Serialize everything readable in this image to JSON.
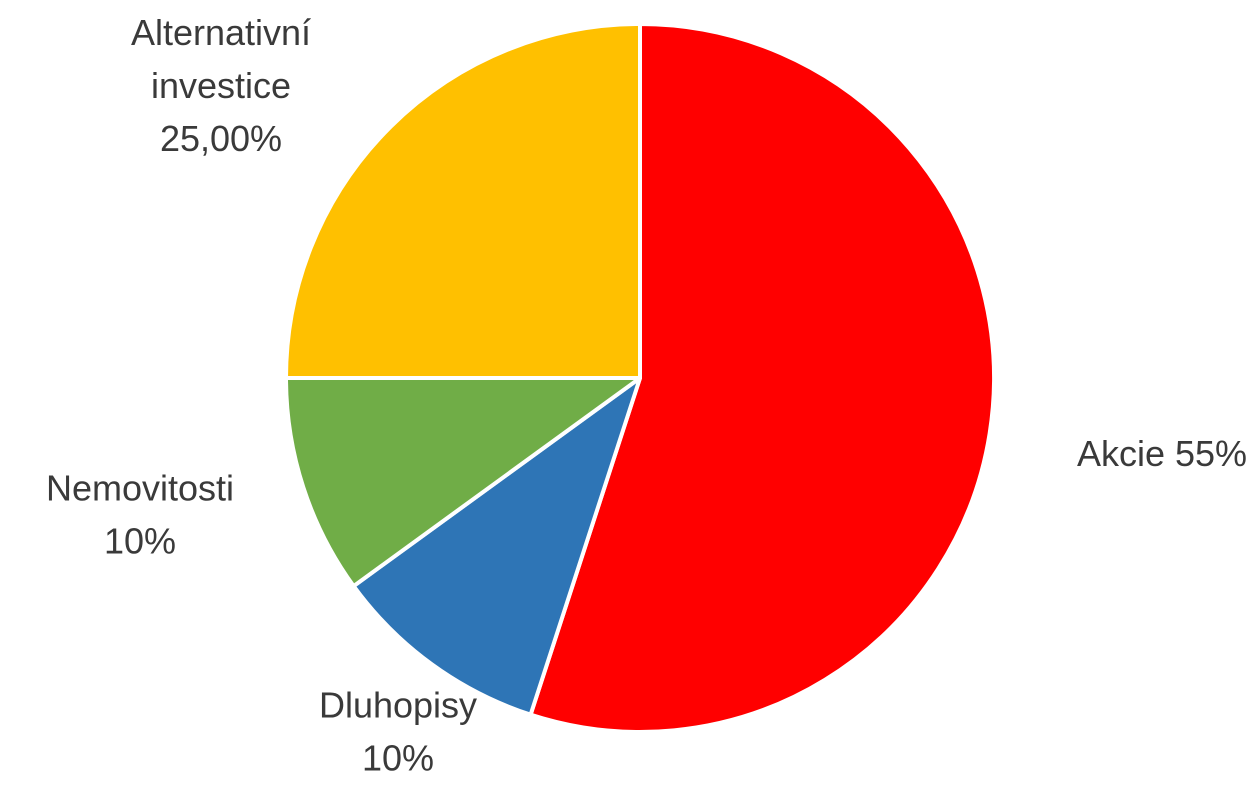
{
  "chart_data": {
    "type": "pie",
    "slices": [
      {
        "name": "Akcie",
        "label_lines": [
          "Akcie 55%"
        ],
        "value": 55,
        "color": "#ff0000"
      },
      {
        "name": "Dluhopisy",
        "label_lines": [
          "Dluhopisy",
          "10%"
        ],
        "value": 10,
        "color": "#2e75b6"
      },
      {
        "name": "Nemovitosti",
        "label_lines": [
          "Nemovitosti",
          "10%"
        ],
        "value": 10,
        "color": "#70ad47"
      },
      {
        "name": "Alternativní investice",
        "label_lines": [
          "Alternativní",
          "investice",
          "25,00%"
        ],
        "value": 25,
        "color": "#ffc000"
      }
    ],
    "legend": "none"
  }
}
